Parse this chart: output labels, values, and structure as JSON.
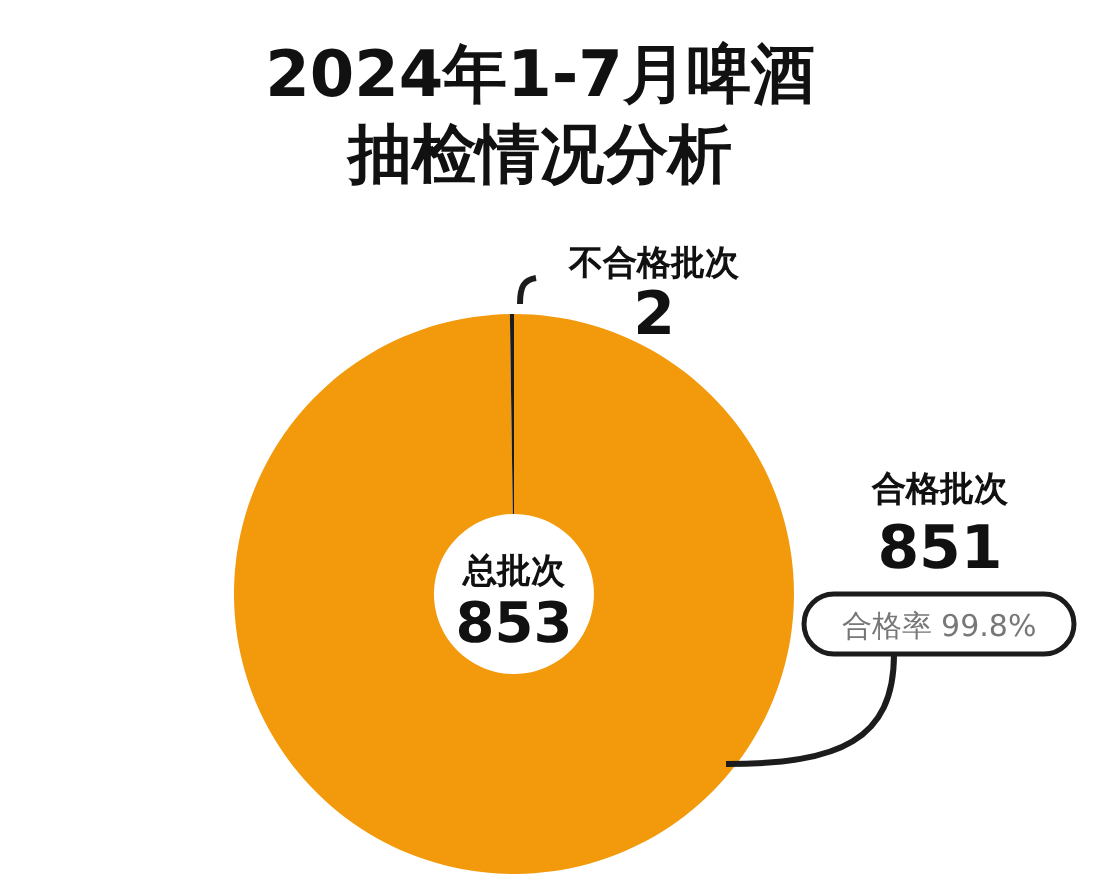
{
  "chart_data": {
    "type": "donut",
    "title": "2024年1-7月啤酒抽检情况分析",
    "categories": [
      "合格批次",
      "不合格批次"
    ],
    "values": [
      851,
      2
    ],
    "colors": [
      "#f29a0c",
      "#1c1c1c"
    ],
    "data_labels": true,
    "annotations": [
      "总批次",
      "853",
      "合格率  99.8%"
    ]
  }
}
